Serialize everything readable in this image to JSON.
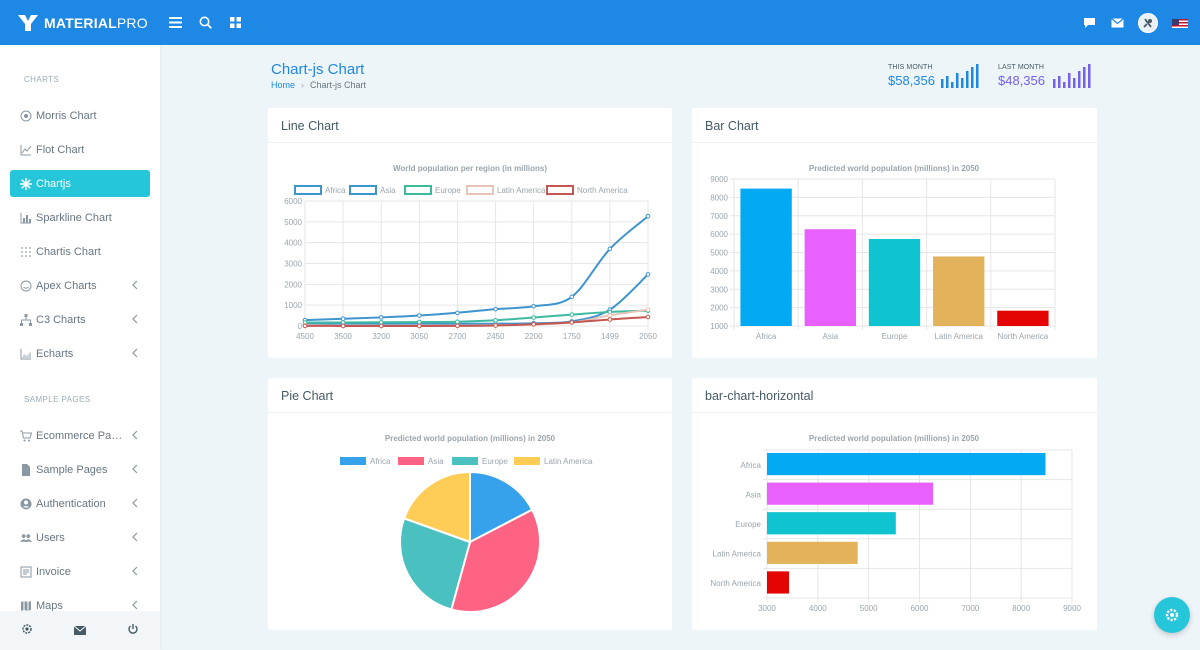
{
  "app": {
    "brand_bold": "MATERIAL",
    "brand_light": "PRO"
  },
  "sidebar": {
    "caption_charts": "CHARTS",
    "caption_sample": "SAMPLE PAGES",
    "items": [
      {
        "label": "Morris Chart",
        "icon": "target-icon"
      },
      {
        "label": "Flot Chart",
        "icon": "line-chart-icon"
      },
      {
        "label": "Chartjs",
        "icon": "asterisk-icon"
      },
      {
        "label": "Sparkline Chart",
        "icon": "bar-chart-icon"
      },
      {
        "label": "Chartis Chart",
        "icon": "grid-dots-icon"
      },
      {
        "label": "Apex Charts",
        "icon": "smile-icon"
      },
      {
        "label": "C3 Charts",
        "icon": "sitemap-icon"
      },
      {
        "label": "Echarts",
        "icon": "area-chart-icon"
      }
    ],
    "sample_items": [
      {
        "label": "Ecommerce Pages",
        "icon": "cart-icon"
      },
      {
        "label": "Sample Pages",
        "icon": "file-icon"
      },
      {
        "label": "Authentication",
        "icon": "user-circle-icon"
      },
      {
        "label": "Users",
        "icon": "users-icon"
      },
      {
        "label": "Invoice",
        "icon": "invoice-icon"
      },
      {
        "label": "Maps",
        "icon": "map-icon"
      }
    ]
  },
  "header": {
    "title": "Chart-js Chart",
    "breadcrumb_home": "Home",
    "breadcrumb_current": "Chart-js Chart",
    "this_month_label": "THIS MONTH",
    "this_month_value": "$58,356",
    "last_month_label": "LAST MONTH",
    "last_month_value": "$48,356",
    "this_month_color": "#1e88e5",
    "last_month_color": "#7460ee"
  },
  "cards": {
    "line": "Line Chart",
    "bar": "Bar Chart",
    "pie": "Pie Chart",
    "hbar": "bar-chart-horizontal"
  },
  "chart_data": [
    {
      "type": "line",
      "title": "World population per region (in millions)",
      "categories": [
        "4500",
        "3500",
        "3200",
        "3050",
        "2700",
        "2450",
        "2200",
        "1750",
        "1499",
        "2050"
      ],
      "ylim": [
        0,
        6000
      ],
      "yticks": [
        0,
        1000,
        2000,
        3000,
        4000,
        5000,
        6000
      ],
      "legend_position": "top",
      "series": [
        {
          "name": "Africa",
          "color": "#3e95cd",
          "values": [
            86,
            114,
            106,
            106,
            107,
            111,
            133,
            221,
            783,
            2478
          ]
        },
        {
          "name": "Asia",
          "color": "#3e95cd",
          "values": [
            282,
            350,
            411,
            502,
            635,
            809,
            947,
            1402,
            3700,
            5267
          ]
        },
        {
          "name": "Europe",
          "color": "#3cba9f",
          "values": [
            168,
            170,
            178,
            190,
            203,
            276,
            408,
            547,
            675,
            734
          ]
        },
        {
          "name": "Latin America",
          "color": "#e8c3b9",
          "values": [
            40,
            20,
            10,
            16,
            24,
            38,
            74,
            167,
            508,
            784
          ]
        },
        {
          "name": "North America",
          "color": "#c45850",
          "values": [
            6,
            3,
            2,
            2,
            7,
            26,
            82,
            172,
            312,
            433
          ]
        }
      ]
    },
    {
      "type": "bar",
      "title": "Predicted world population (millions) in 2050",
      "categories": [
        "Africa",
        "Asia",
        "Europe",
        "Latin America",
        "North America"
      ],
      "values": [
        8478,
        6267,
        5734,
        4784,
        1833
      ],
      "colors": [
        "#03a9f3",
        "#e861ff",
        "#0fc3d1",
        "#e2b35b",
        "#e40503"
      ],
      "ylim": [
        1000,
        9000
      ],
      "yticks": [
        1000,
        2000,
        3000,
        4000,
        5000,
        6000,
        7000,
        8000,
        9000
      ]
    },
    {
      "type": "pie",
      "title": "Predicted world population (millions) in 2050",
      "categories": [
        "Africa",
        "Asia",
        "Europe",
        "Latin America"
      ],
      "values": [
        2478,
        5267,
        3734,
        2784
      ],
      "colors": [
        "#36a2eb",
        "#ff6384",
        "#4bc0c0",
        "#ffcd56"
      ],
      "legend_position": "top"
    },
    {
      "type": "bar",
      "orientation": "horizontal",
      "title": "Predicted world population (millions) in 2050",
      "categories": [
        "Africa",
        "Asia",
        "Europe",
        "Latin America",
        "North America"
      ],
      "values": [
        8478,
        6267,
        5534,
        4784,
        3433
      ],
      "colors": [
        "#03a9f3",
        "#e861ff",
        "#0fc3d1",
        "#e2b35b",
        "#e40503"
      ],
      "xlim": [
        3000,
        9000
      ],
      "xticks": [
        3000,
        4000,
        5000,
        6000,
        7000,
        8000,
        9000
      ]
    }
  ]
}
